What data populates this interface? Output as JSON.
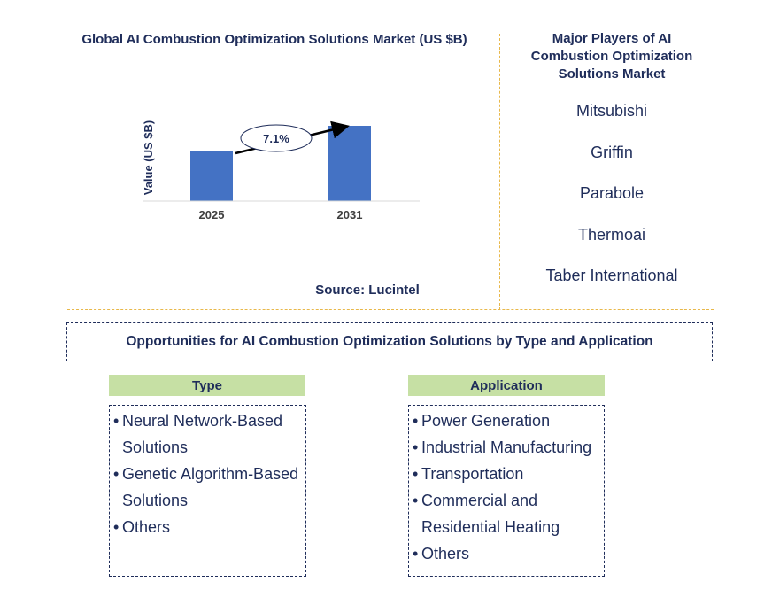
{
  "chart_data": {
    "type": "bar",
    "title": "Global AI Combustion Optimization Solutions Market (US $B)",
    "ylabel": "Value (US $B)",
    "categories": [
      "2025",
      "2031"
    ],
    "values": [
      1.0,
      1.5
    ],
    "ylim": [
      0,
      1.5
    ],
    "annotation": "7.1%",
    "grid": false,
    "bar_color": "#4472c4"
  },
  "source": "Source: Lucintel",
  "players": {
    "title": "Major Players of AI Combustion Optimization Solutions Market",
    "items": [
      "Mitsubishi",
      "Griffin",
      "Parabole",
      "Thermoai",
      "Taber International"
    ]
  },
  "opportunities": {
    "title": "Opportunities for AI Combustion Optimization Solutions by Type and Application",
    "type": {
      "header": "Type",
      "items": [
        [
          "Neural Network-Based",
          "Solutions"
        ],
        [
          "Genetic Algorithm-Based",
          "Solutions"
        ],
        [
          "Others"
        ]
      ]
    },
    "application": {
      "header": "Application",
      "items": [
        [
          "Power Generation"
        ],
        [
          "Industrial Manufacturing"
        ],
        [
          "Transportation"
        ],
        [
          "Commercial and",
          "Residential Heating"
        ],
        [
          "Others"
        ]
      ]
    }
  }
}
